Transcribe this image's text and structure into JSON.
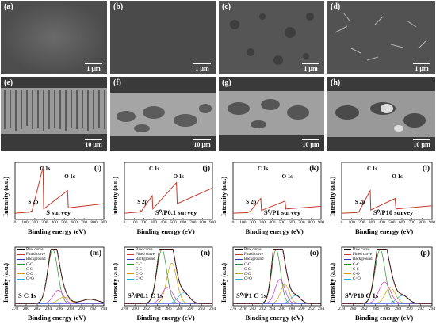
{
  "sem_top": [
    {
      "label": "(a)",
      "scale": "1 µm"
    },
    {
      "label": "(b)",
      "scale": "1 µm"
    },
    {
      "label": "(c)",
      "scale": "1 µm"
    },
    {
      "label": "(d)",
      "scale": "1 µm"
    }
  ],
  "sem_cross": [
    {
      "label": "(e)",
      "scale": "10 µm"
    },
    {
      "label": "(f)",
      "scale": "10 µm"
    },
    {
      "label": "(g)",
      "scale": "10 µm"
    },
    {
      "label": "(h)",
      "scale": "10 µm"
    }
  ],
  "colors": {
    "survey": "#c0392b",
    "raw": "#000000",
    "fitted": "#cc3333",
    "background": "#3333cc",
    "cc": "#2e8b2e",
    "cs": "#cc33cc",
    "co": "#c8a000",
    "c_eq_o": "#22aadd"
  },
  "chart_data": [
    {
      "type": "line",
      "tag": "(i)",
      "title": "S survey",
      "xlabel": "Binding energy (eV)",
      "ylabel": "Intensity (a.u.)",
      "x_ticks": [
        "0",
        "100",
        "200",
        "300",
        "400",
        "500",
        "600",
        "700",
        "800",
        "900"
      ],
      "xlim": [
        0,
        900
      ],
      "annotations": [
        {
          "text": "S 2p",
          "x": 164
        },
        {
          "text": "C 1s",
          "x": 284
        },
        {
          "text": "O 1s",
          "x": 532
        }
      ],
      "series": [
        {
          "x": [
            0,
            150,
            164,
            170,
            284,
            290,
            532,
            540,
            900
          ],
          "y": [
            0.12,
            0.14,
            0.16,
            0.15,
            1.0,
            0.2,
            0.55,
            0.22,
            0.3
          ]
        }
      ]
    },
    {
      "type": "line",
      "tag": "(j)",
      "title": "S⁰/P0.1 survey",
      "xlabel": "Binding energy (eV)",
      "ylabel": "Intensity (a.u.)",
      "x_ticks": [
        "0",
        "100",
        "200",
        "300",
        "400",
        "500",
        "600",
        "700",
        "800",
        "900"
      ],
      "xlim": [
        0,
        900
      ],
      "annotations": [
        {
          "text": "S 2p",
          "x": 164
        },
        {
          "text": "C 1s",
          "x": 284
        },
        {
          "text": "O 1s",
          "x": 532
        }
      ],
      "series": [
        {
          "x": [
            0,
            150,
            164,
            170,
            284,
            290,
            532,
            540,
            900
          ],
          "y": [
            0.12,
            0.14,
            0.17,
            0.15,
            0.45,
            0.2,
            0.7,
            0.3,
            0.6
          ]
        }
      ]
    },
    {
      "type": "line",
      "tag": "(k)",
      "title": "S⁰/P1 survey",
      "xlabel": "Binding energy (eV)",
      "ylabel": "Intensity (a.u.)",
      "x_ticks": [
        "0",
        "100",
        "200",
        "300",
        "400",
        "500",
        "600",
        "700",
        "800",
        "900"
      ],
      "xlim": [
        0,
        900
      ],
      "annotations": [
        {
          "text": "S 2p",
          "x": 164
        },
        {
          "text": "C 1s",
          "x": 284
        },
        {
          "text": "O 1s",
          "x": 532
        }
      ],
      "series": [
        {
          "x": [
            0,
            150,
            164,
            170,
            284,
            290,
            532,
            540,
            900
          ],
          "y": [
            0.12,
            0.13,
            0.15,
            0.14,
            0.4,
            0.17,
            0.35,
            0.2,
            0.25
          ]
        }
      ]
    },
    {
      "type": "line",
      "tag": "(l)",
      "title": "S⁰/P10 survey",
      "xlabel": "Binding energy (eV)",
      "ylabel": "Intensity (a.u.)",
      "x_ticks": [
        "0",
        "100",
        "200",
        "300",
        "400",
        "500",
        "600",
        "700",
        "800",
        "900"
      ],
      "xlim": [
        0,
        900
      ],
      "annotations": [
        {
          "text": "S 2p",
          "x": 164
        },
        {
          "text": "C 1s",
          "x": 284
        },
        {
          "text": "O 1s",
          "x": 532
        }
      ],
      "series": [
        {
          "x": [
            0,
            150,
            164,
            170,
            284,
            290,
            532,
            540,
            900
          ],
          "y": [
            0.12,
            0.13,
            0.15,
            0.14,
            0.55,
            0.18,
            0.4,
            0.2,
            0.26
          ]
        }
      ]
    },
    {
      "type": "line",
      "tag": "(m)",
      "title": "S C 1s",
      "xlabel": "Binding energy (eV)",
      "ylabel": "Intensity (a.u.)",
      "x_ticks": [
        "278",
        "280",
        "282",
        "284",
        "286",
        "288",
        "290",
        "292",
        "294"
      ],
      "xlim": [
        278,
        294
      ],
      "legend": [
        "Raw curve",
        "Fitted curve",
        "Background",
        "C-C",
        "C-S",
        "C-O",
        "C=O"
      ],
      "peaks": [
        {
          "name": "C-C",
          "center": 284.8,
          "height": 1.0,
          "width": 0.9
        },
        {
          "name": "C-S",
          "center": 285.8,
          "height": 0.25,
          "width": 0.9
        },
        {
          "name": "C-O",
          "center": 286.8,
          "height": 0.12,
          "width": 1.0
        },
        {
          "name": "C=O",
          "center": 291.5,
          "height": 0.08,
          "width": 1.5
        }
      ]
    },
    {
      "type": "line",
      "tag": "(n)",
      "title": "S⁰/P0.1 C 1s",
      "xlabel": "Binding energy (eV)",
      "ylabel": "Intensity (a.u.)",
      "x_ticks": [
        "278",
        "280",
        "282",
        "284",
        "286",
        "288",
        "290",
        "292",
        "294"
      ],
      "xlim": [
        278,
        294
      ],
      "legend": [
        "Raw curve",
        "Fitted curve",
        "Background",
        "C-C",
        "C-S",
        "C-O",
        "C=O"
      ],
      "peaks": [
        {
          "name": "C-C",
          "center": 284.8,
          "height": 1.0,
          "width": 0.9
        },
        {
          "name": "C-S",
          "center": 285.8,
          "height": 0.3,
          "width": 1.0
        },
        {
          "name": "C-O",
          "center": 286.6,
          "height": 0.75,
          "width": 0.9
        },
        {
          "name": "C=O",
          "center": 288.8,
          "height": 0.2,
          "width": 1.0
        }
      ]
    },
    {
      "type": "line",
      "tag": "(o)",
      "title": "S⁰/P1 C 1s",
      "xlabel": "Binding energy (eV)",
      "ylabel": "Intensity (a.u.)",
      "x_ticks": [
        "276",
        "278",
        "280",
        "282",
        "284",
        "286",
        "288",
        "290",
        "292",
        "294"
      ],
      "xlim": [
        276,
        294
      ],
      "legend": [
        "Raw curve",
        "Fitted curve",
        "Background",
        "C-C",
        "C-S",
        "C-O",
        "C=O"
      ],
      "peaks": [
        {
          "name": "C-C",
          "center": 284.8,
          "height": 1.0,
          "width": 0.9
        },
        {
          "name": "C-S",
          "center": 285.6,
          "height": 0.45,
          "width": 1.0
        },
        {
          "name": "C-O",
          "center": 286.6,
          "height": 0.35,
          "width": 0.9
        },
        {
          "name": "C=O",
          "center": 288.8,
          "height": 0.15,
          "width": 1.0
        }
      ]
    },
    {
      "type": "line",
      "tag": "(p)",
      "title": "S⁰/P10 C 1s",
      "xlabel": "Binding energy (eV)",
      "ylabel": "Intensity (a.u.)",
      "x_ticks": [
        "278",
        "280",
        "282",
        "284",
        "286",
        "288",
        "290",
        "292",
        "294"
      ],
      "xlim": [
        278,
        294
      ],
      "legend": [
        "Raw curve",
        "Fitted curve",
        "Background",
        "C-C",
        "C-S",
        "C-O",
        "C=O"
      ],
      "peaks": [
        {
          "name": "C-C",
          "center": 284.8,
          "height": 1.0,
          "width": 0.9
        },
        {
          "name": "C-S",
          "center": 285.6,
          "height": 0.4,
          "width": 1.0
        },
        {
          "name": "C-O",
          "center": 286.6,
          "height": 0.3,
          "width": 0.9
        },
        {
          "name": "C=O",
          "center": 288.8,
          "height": 0.15,
          "width": 1.0
        }
      ]
    }
  ]
}
